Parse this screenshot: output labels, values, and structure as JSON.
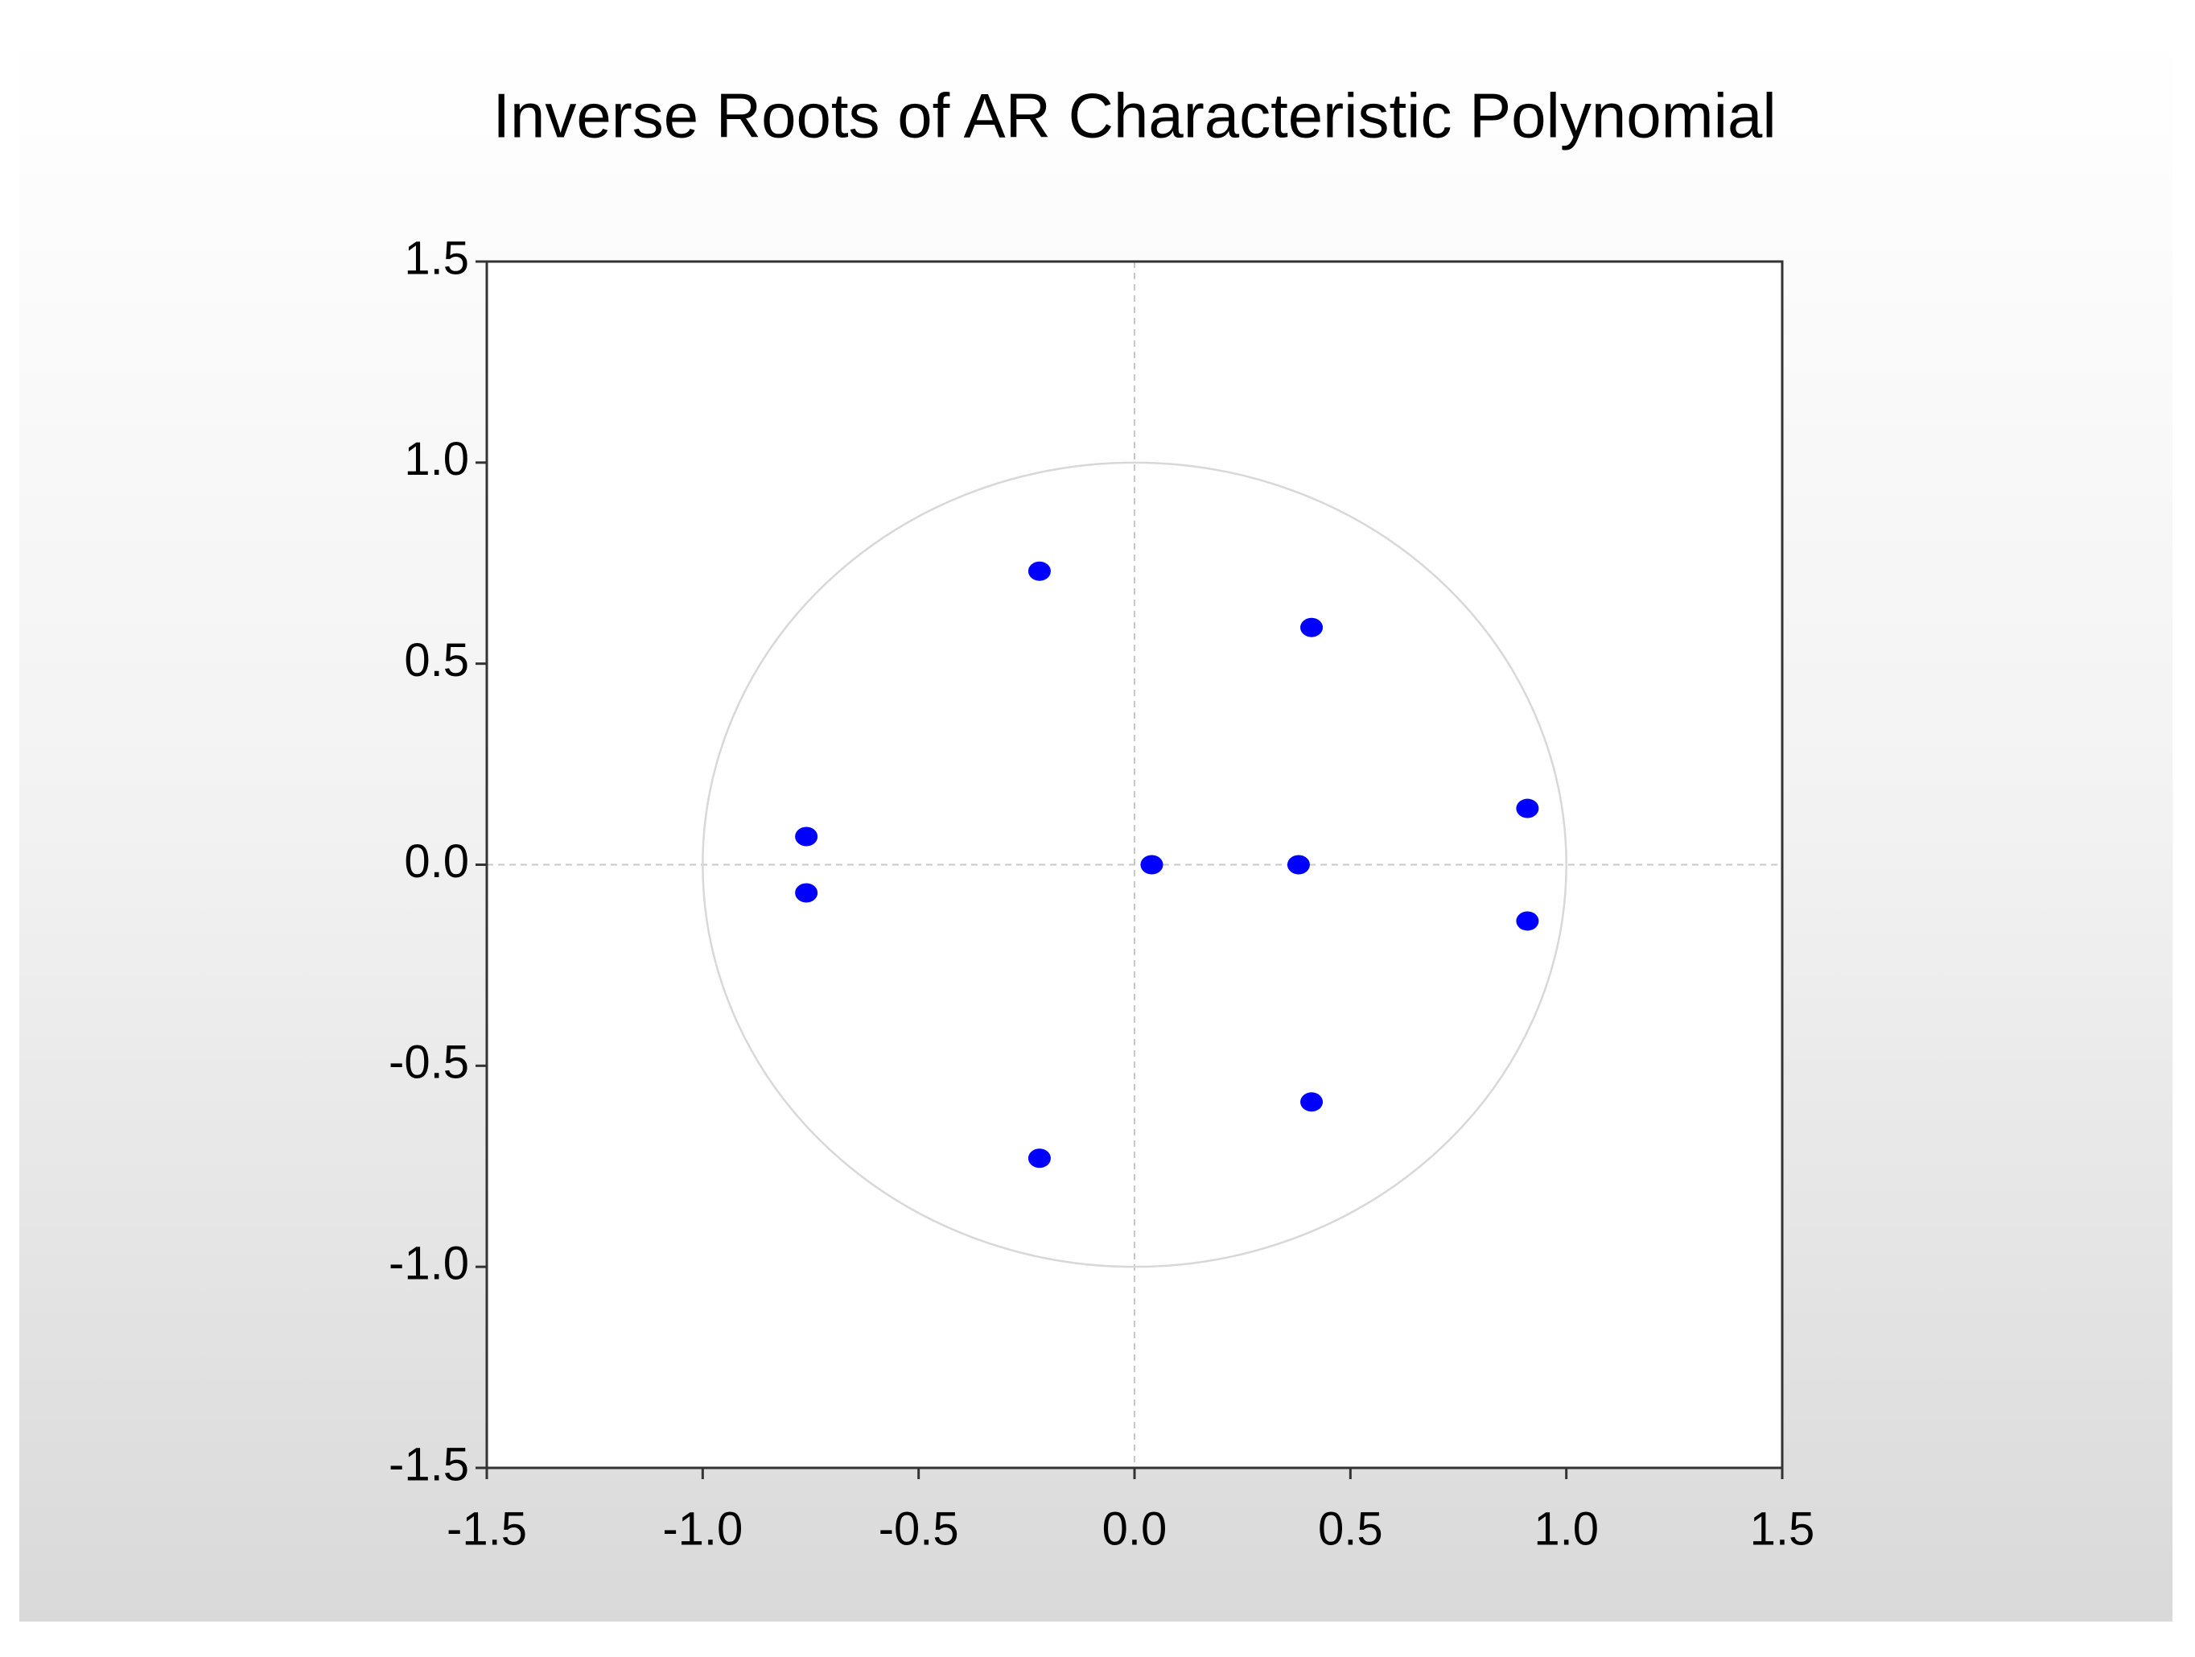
{
  "chart_data": {
    "type": "scatter",
    "title": "Inverse Roots of AR Characteristic Polynomial",
    "x": [
      -0.22,
      0.41,
      -0.76,
      -0.76,
      0.04,
      0.38,
      0.91,
      0.91,
      0.41,
      -0.22
    ],
    "values": [
      0.73,
      0.59,
      0.07,
      -0.07,
      0.0,
      0.0,
      0.14,
      -0.14,
      -0.59,
      -0.73
    ],
    "color": "#0000ff",
    "xlim": [
      -1.5,
      1.5
    ],
    "ylim": [
      -1.5,
      1.5
    ],
    "xticks": [
      -1.5,
      {
        "value": -1,
        "label": "-1.0"
      },
      -0.5,
      {
        "value": 0,
        "label": "0.0"
      },
      0.5,
      {
        "value": 1,
        "label": "1.0"
      },
      1.5
    ],
    "yticks": [
      -1.5,
      {
        "value": -1,
        "label": "-1.0"
      },
      -0.5,
      {
        "value": 0,
        "label": "0.0"
      },
      0.5,
      {
        "value": 1,
        "label": "1.0"
      },
      1.5
    ],
    "unit_circle": true,
    "zero_lines": true
  }
}
